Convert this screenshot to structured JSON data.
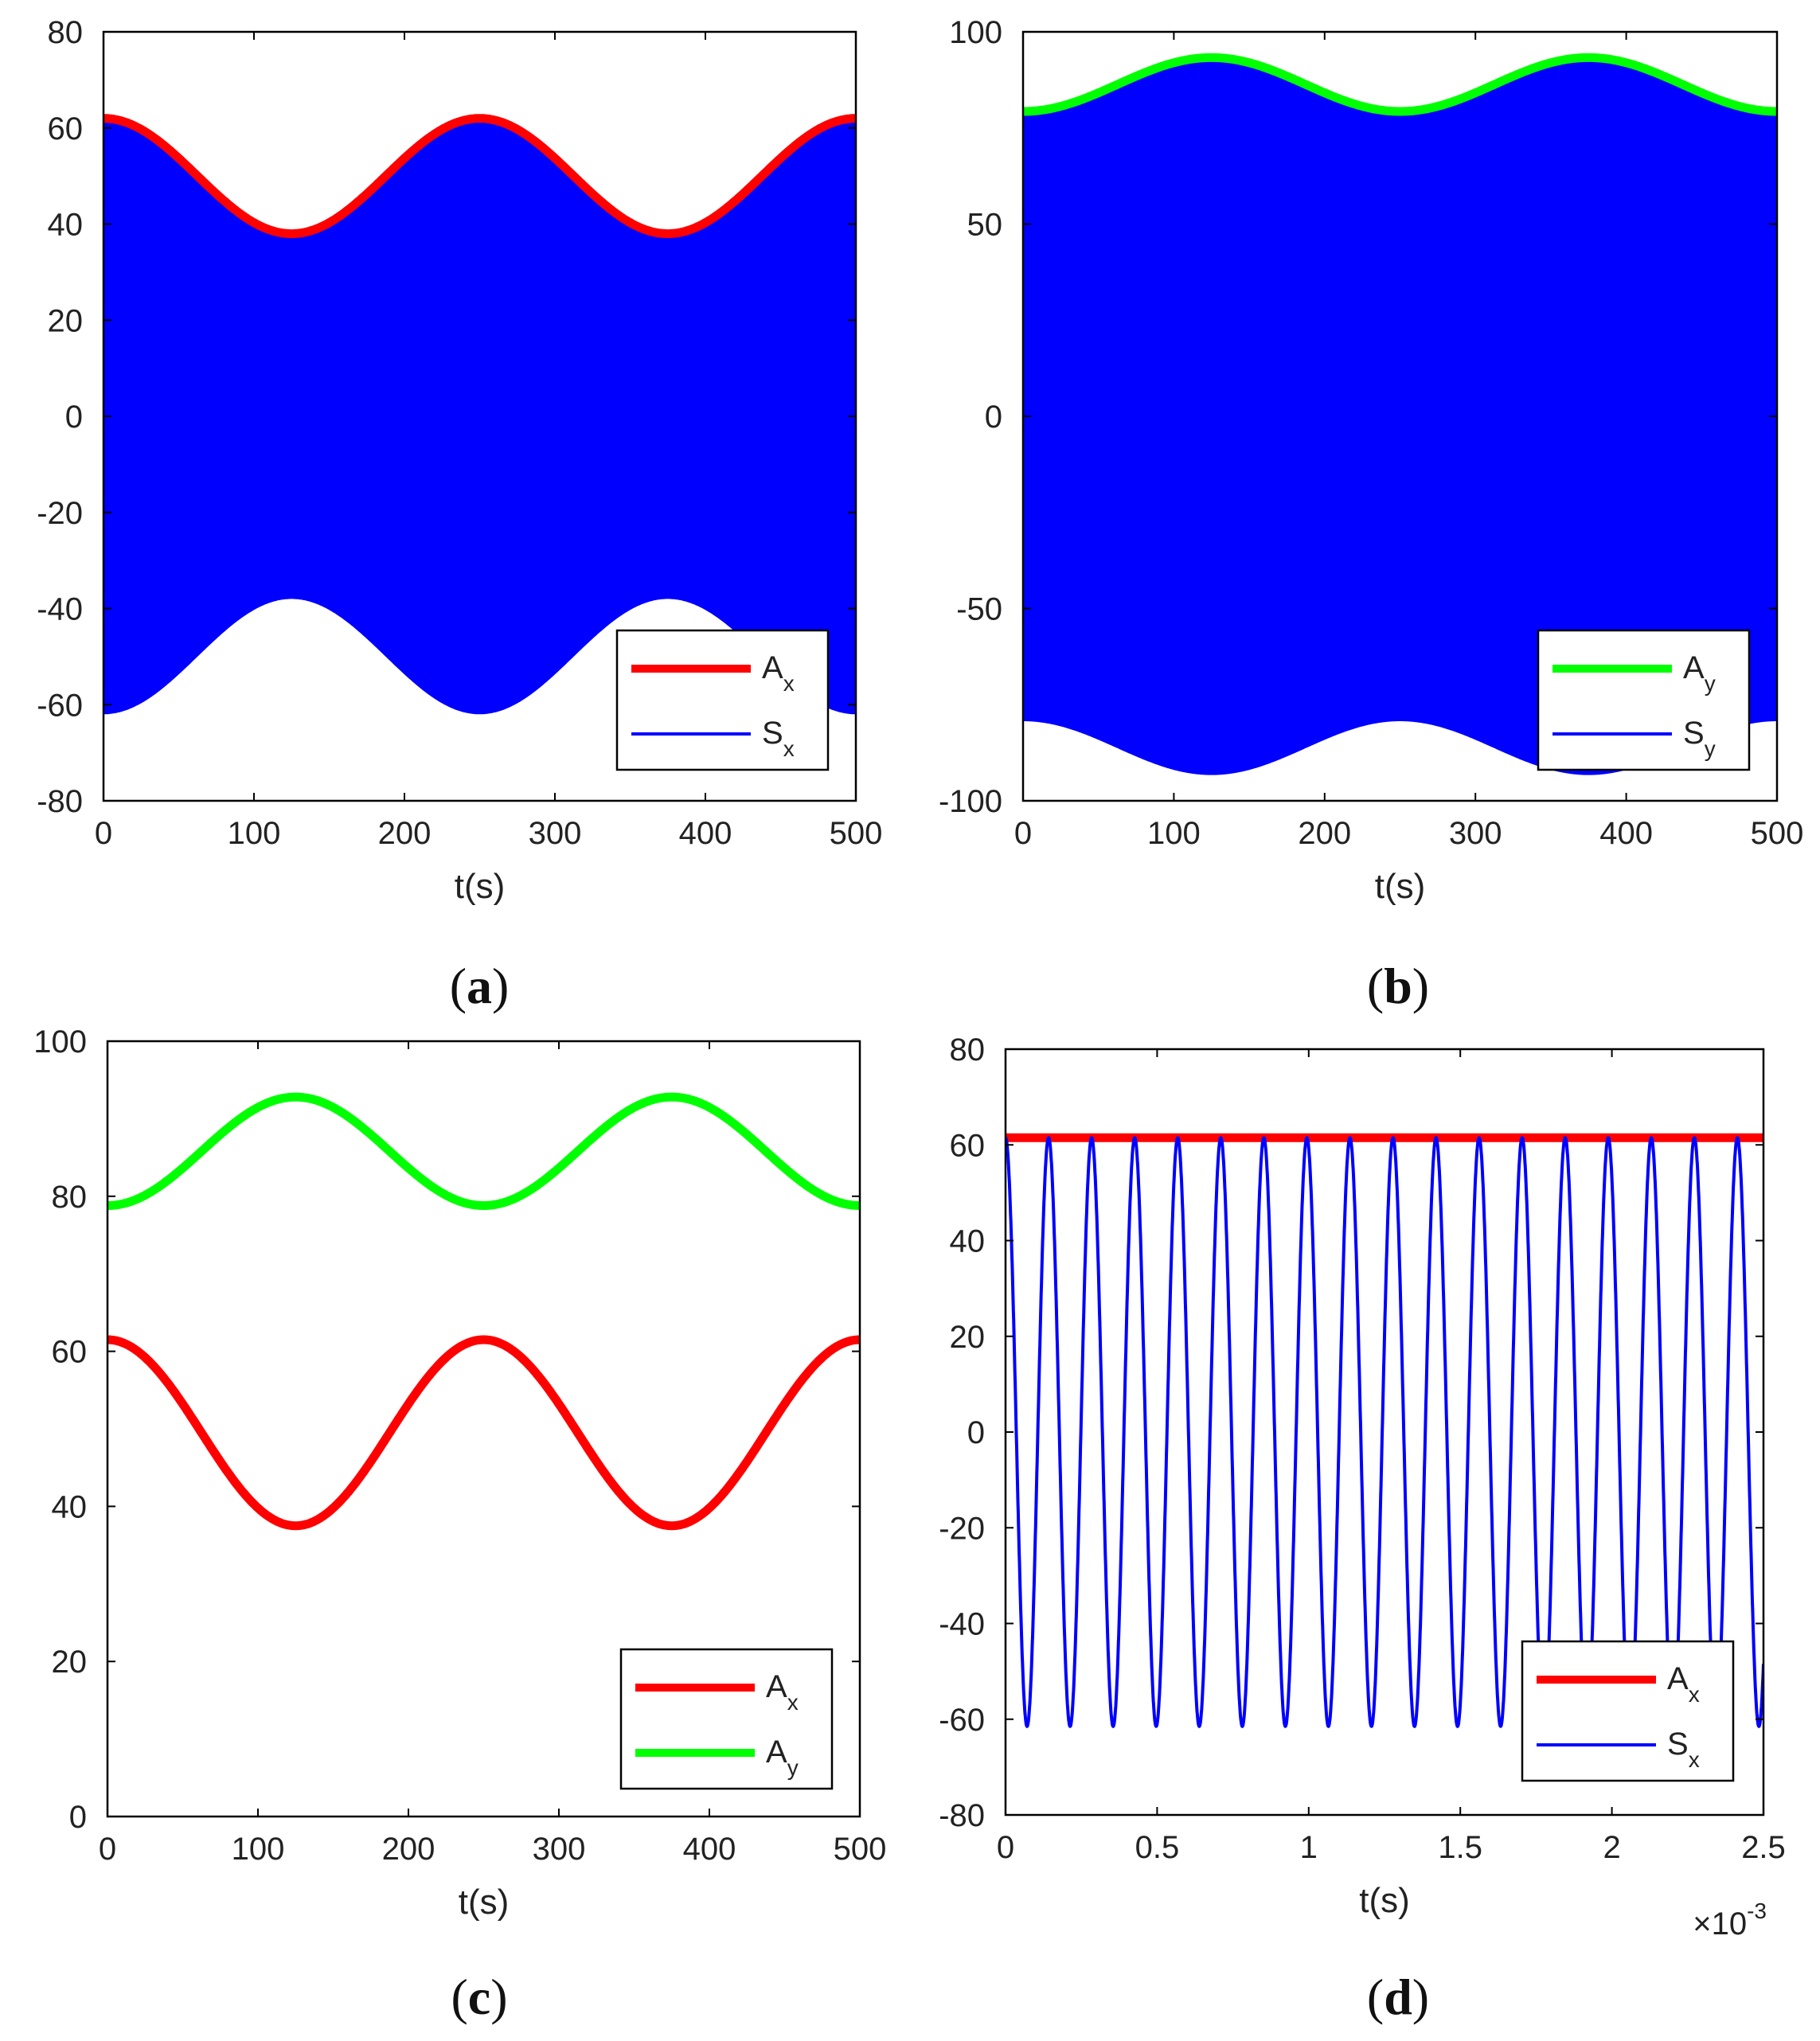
{
  "figure": {
    "colors": {
      "red": "#ff0000",
      "green": "#00ff00",
      "blue": "#0000ff",
      "axis": "#000000"
    }
  },
  "chart_data": [
    {
      "id": "a",
      "type": "line",
      "caption": {
        "open": "(",
        "letter": "a",
        "close": ")"
      },
      "xlabel": "t(s)",
      "xlim": [
        0,
        500
      ],
      "ylim": [
        -80,
        80
      ],
      "xticks": [
        0,
        100,
        200,
        300,
        400,
        500
      ],
      "yticks": [
        80,
        60,
        40,
        20,
        0,
        -20,
        -40,
        -60,
        -80
      ],
      "series": [
        {
          "name": "S",
          "sub": "x",
          "color": "#0000ff",
          "kind": "filled_oscillation",
          "envelope": {
            "mean": 50,
            "amplitude": 12,
            "period": 250
          }
        },
        {
          "name": "A",
          "sub": "x",
          "color": "#ff0000",
          "kind": "envelope",
          "mean": 50,
          "amplitude": 12,
          "period": 250
        }
      ],
      "legend": [
        {
          "name": "A",
          "sub": "x",
          "color": "#ff0000"
        },
        {
          "name": "S",
          "sub": "x",
          "color": "#0000ff"
        }
      ]
    },
    {
      "id": "b",
      "type": "line",
      "caption": {
        "open": "(",
        "letter": "b",
        "close": ")"
      },
      "xlabel": "t(s)",
      "xlim": [
        0,
        500
      ],
      "ylim": [
        -100,
        100
      ],
      "xticks": [
        0,
        100,
        200,
        300,
        400,
        500
      ],
      "yticks": [
        100,
        50,
        0,
        -50,
        -100
      ],
      "series": [
        {
          "name": "S",
          "sub": "y",
          "color": "#0000ff",
          "kind": "filled_oscillation",
          "envelope": {
            "mean": 86.3,
            "amplitude": -7,
            "period": 250
          }
        },
        {
          "name": "A",
          "sub": "y",
          "color": "#00ff00",
          "kind": "envelope",
          "mean": 86.3,
          "amplitude": -7,
          "period": 250
        }
      ],
      "legend": [
        {
          "name": "A",
          "sub": "y",
          "color": "#00ff00"
        },
        {
          "name": "S",
          "sub": "y",
          "color": "#0000ff"
        }
      ]
    },
    {
      "id": "c",
      "type": "line",
      "caption": {
        "open": "(",
        "letter": "c",
        "close": ")"
      },
      "xlabel": "t(s)",
      "xlim": [
        0,
        500
      ],
      "ylim": [
        0,
        100
      ],
      "xticks": [
        0,
        100,
        200,
        300,
        400,
        500
      ],
      "yticks": [
        100,
        80,
        60,
        40,
        20,
        0
      ],
      "series": [
        {
          "name": "A",
          "sub": "x",
          "color": "#ff0000",
          "kind": "envelope",
          "mean": 49.5,
          "amplitude": 12,
          "period": 250
        },
        {
          "name": "A",
          "sub": "y",
          "color": "#00ff00",
          "kind": "envelope",
          "mean": 85.8,
          "amplitude": -7,
          "period": 250
        }
      ],
      "legend": [
        {
          "name": "A",
          "sub": "x",
          "color": "#ff0000"
        },
        {
          "name": "A",
          "sub": "y",
          "color": "#00ff00"
        }
      ]
    },
    {
      "id": "d",
      "type": "line",
      "caption": {
        "open": "(",
        "letter": "d",
        "close": ")"
      },
      "xlabel": "t(s)",
      "xlim": [
        0,
        2.5
      ],
      "ylim": [
        -80,
        80
      ],
      "xticks": [
        0,
        0.5,
        1,
        1.5,
        2,
        2.5
      ],
      "yticks": [
        80,
        60,
        40,
        20,
        0,
        -20,
        -40,
        -60,
        -80
      ],
      "x_multiplier": {
        "prefix": "×10",
        "exponent": "-3"
      },
      "series": [
        {
          "name": "A",
          "sub": "x",
          "color": "#ff0000",
          "kind": "constant",
          "value": 61.5
        },
        {
          "name": "S",
          "sub": "x",
          "color": "#0000ff",
          "kind": "cosine",
          "amplitude": 61.5,
          "period": 0.142
        }
      ],
      "legend": [
        {
          "name": "A",
          "sub": "x",
          "color": "#ff0000"
        },
        {
          "name": "S",
          "sub": "x",
          "color": "#0000ff"
        }
      ]
    }
  ]
}
